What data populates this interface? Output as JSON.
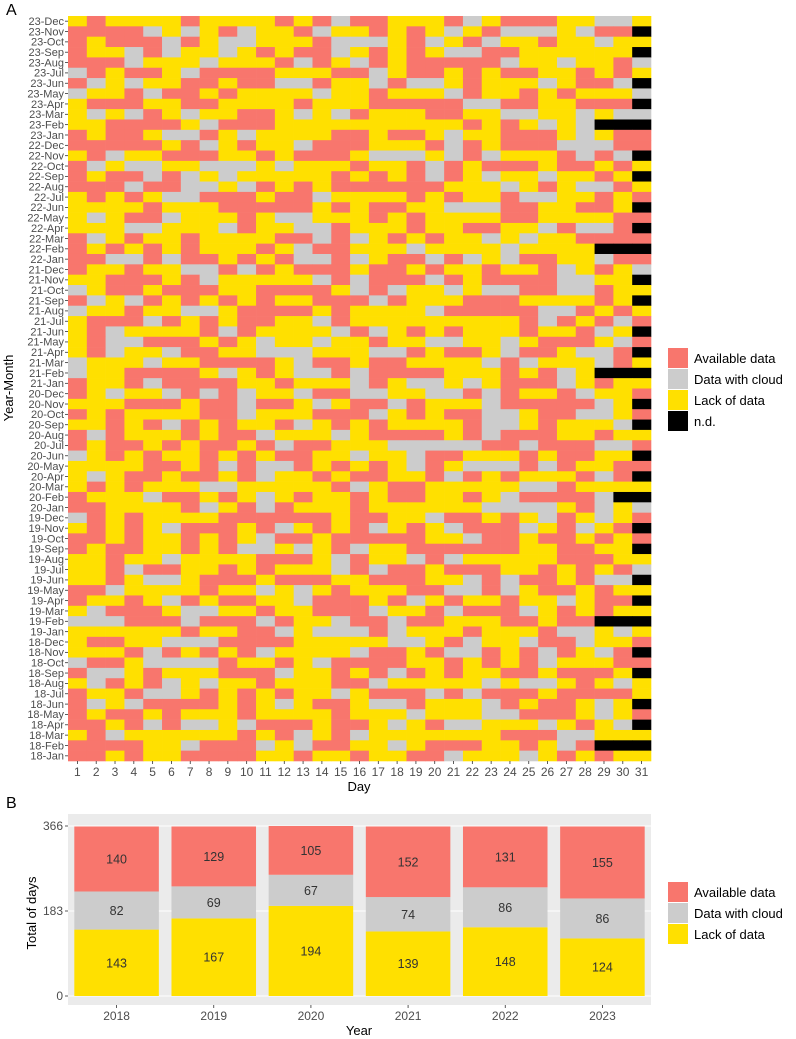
{
  "panel_a_label": "A",
  "panel_b_label": "B",
  "colors": {
    "available": "#F8766D",
    "cloud": "#CCCCCC",
    "lack": "#FFE000",
    "nd": "#000000",
    "panel_bg": "#EBEBEB"
  },
  "chart_data": [
    {
      "type": "heatmap",
      "title": "",
      "xlabel": "Day",
      "ylabel": "Year-Month",
      "x_categories": [
        "1",
        "2",
        "3",
        "4",
        "5",
        "6",
        "7",
        "8",
        "9",
        "10",
        "11",
        "12",
        "13",
        "14",
        "15",
        "16",
        "17",
        "18",
        "19",
        "20",
        "21",
        "22",
        "23",
        "24",
        "25",
        "26",
        "27",
        "28",
        "29",
        "30",
        "31"
      ],
      "y_categories_top_to_bottom": [
        "23-Dec",
        "23-Nov",
        "23-Oct",
        "23-Sep",
        "23-Aug",
        "23-Jul",
        "23-Jun",
        "23-May",
        "23-Apr",
        "23-Mar",
        "23-Feb",
        "23-Jan",
        "22-Dec",
        "22-Nov",
        "22-Oct",
        "22-Sep",
        "22-Aug",
        "22-Jul",
        "22-Jun",
        "22-May",
        "22-Apr",
        "22-Mar",
        "22-Feb",
        "22-Jan",
        "21-Dec",
        "21-Nov",
        "21-Oct",
        "21-Sep",
        "21-Aug",
        "21-Jul",
        "21-Jun",
        "21-May",
        "21-Apr",
        "21-Mar",
        "21-Feb",
        "21-Jan",
        "20-Dec",
        "20-Nov",
        "20-Oct",
        "20-Sep",
        "20-Aug",
        "20-Jul",
        "20-Jun",
        "20-May",
        "20-Apr",
        "20-Mar",
        "20-Feb",
        "20-Jan",
        "19-Dec",
        "19-Nov",
        "19-Oct",
        "19-Sep",
        "19-Aug",
        "19-Jul",
        "19-Jun",
        "19-May",
        "19-Apr",
        "19-Mar",
        "19-Feb",
        "19-Jan",
        "18-Dec",
        "18-Nov",
        "18-Oct",
        "18-Sep",
        "18-Aug",
        "18-Jul",
        "18-Jun",
        "18-May",
        "18-Apr",
        "18-Mar",
        "18-Feb",
        "18-Jan"
      ],
      "legend": [
        "Available data",
        "Data with cloud",
        "Lack of data",
        "n.d."
      ],
      "legend_position": "right",
      "cell_codes": {
        "A": "Available data",
        "C": "Data with cloud",
        "L": "Lack of data",
        "N": "n.d."
      },
      "note": "Each day cell is A, C or L (pattern approximated per month); N marks non-existent days.",
      "days_in_month_top_to_bottom": [
        31,
        30,
        31,
        30,
        31,
        31,
        30,
        31,
        30,
        31,
        28,
        31,
        31,
        30,
        31,
        30,
        31,
        31,
        30,
        31,
        30,
        31,
        28,
        31,
        31,
        30,
        31,
        30,
        31,
        31,
        30,
        31,
        30,
        31,
        28,
        31,
        31,
        30,
        31,
        30,
        31,
        31,
        30,
        31,
        30,
        31,
        29,
        31,
        31,
        30,
        31,
        30,
        31,
        31,
        30,
        31,
        30,
        31,
        28,
        31,
        31,
        30,
        31,
        30,
        31,
        31,
        30,
        31,
        30,
        31,
        28,
        31
      ],
      "available_days_per_year": {
        "2018": 140,
        "2019": 129,
        "2020": 105,
        "2021": 152,
        "2022": 131,
        "2023": 155
      },
      "cloud_days_per_year": {
        "2018": 82,
        "2019": 69,
        "2020": 67,
        "2021": 74,
        "2022": 86,
        "2023": 86
      },
      "lack_days_per_year": {
        "2018": 143,
        "2019": 167,
        "2020": 194,
        "2021": 139,
        "2022": 148,
        "2023": 124
      }
    },
    {
      "type": "bar",
      "stacked": true,
      "title": "",
      "xlabel": "Year",
      "ylabel": "Total of days",
      "categories": [
        "2018",
        "2019",
        "2020",
        "2021",
        "2022",
        "2023"
      ],
      "series": [
        {
          "name": "Lack of data",
          "values": [
            143,
            167,
            194,
            139,
            148,
            124
          ]
        },
        {
          "name": "Data with cloud",
          "values": [
            82,
            69,
            67,
            74,
            86,
            86
          ]
        },
        {
          "name": "Available data",
          "values": [
            140,
            129,
            105,
            152,
            131,
            155
          ]
        }
      ],
      "yticks": [
        "0",
        "183",
        "366"
      ],
      "ylim": [
        0,
        366
      ],
      "legend": [
        "Available data",
        "Data with cloud",
        "Lack of data"
      ],
      "legend_position": "right"
    }
  ]
}
